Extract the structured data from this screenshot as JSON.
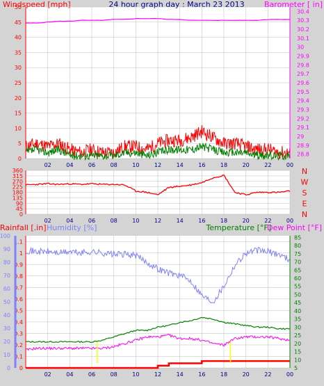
{
  "colors": {
    "background": "#d4d4d4",
    "plot_bg": "#ffffff",
    "grid": "#bbbbbb",
    "wind": "#ff0000",
    "gust": "#008000",
    "barometer": "#ff00ff",
    "winddir": "#ff0000",
    "rain": "#ff0000",
    "humidity": "#8080ff",
    "temperature": "#008000",
    "dewpoint": "#ff00ff",
    "title": "#000080",
    "sunmark": "#ffff00"
  },
  "chart_data": [
    {
      "type": "line",
      "title": "24 hour graph day : March 23 2013",
      "left_label": "Windspeed [mph]",
      "right_label": "Barometer [ in]",
      "x_ticks": [
        "02",
        "04",
        "06",
        "08",
        "10",
        "12",
        "14",
        "16",
        "18",
        "20",
        "22",
        "00"
      ],
      "x_hours": [
        0,
        1,
        2,
        3,
        4,
        5,
        6,
        7,
        8,
        9,
        10,
        11,
        12,
        13,
        14,
        15,
        16,
        17,
        18,
        19,
        20,
        21,
        22,
        23,
        24
      ],
      "left_ticks": [
        "50",
        "45",
        "40",
        "35",
        "30",
        "25",
        "20",
        "15",
        "10",
        "5",
        "0"
      ],
      "left_range": [
        0,
        50
      ],
      "right_ticks": [
        "30.4",
        "30.3",
        "30.2",
        "30.1",
        "30",
        "29.9",
        "29.8",
        "29.7",
        "29.6",
        "29.5",
        "29.4",
        "29.3",
        "29.2",
        "29.1",
        "29",
        "28.9",
        "28.8"
      ],
      "right_range": [
        28.75,
        30.45
      ],
      "series": [
        {
          "key": "wind_speed",
          "axis": "left",
          "values": [
            4,
            5,
            4,
            5,
            3,
            2,
            3,
            2,
            2,
            4,
            4,
            3,
            5,
            6,
            6,
            7,
            9,
            7,
            5,
            5,
            4,
            3,
            3,
            2,
            2
          ]
        },
        {
          "key": "wind_gust",
          "axis": "left",
          "values": [
            2,
            3,
            2,
            3,
            1,
            1,
            1,
            1,
            1,
            2,
            2,
            1,
            2,
            3,
            3,
            3,
            4,
            3,
            2,
            2,
            2,
            1,
            1,
            1,
            1
          ]
        },
        {
          "key": "barometer",
          "axis": "right",
          "values": [
            30.27,
            30.27,
            30.28,
            30.29,
            30.29,
            30.3,
            30.3,
            30.3,
            30.31,
            30.31,
            30.32,
            30.32,
            30.32,
            30.31,
            30.31,
            30.3,
            30.3,
            30.3,
            30.3,
            30.3,
            30.3,
            30.3,
            30.31,
            30.31,
            30.31
          ]
        }
      ]
    },
    {
      "type": "line",
      "x_ticks": [
        "02",
        "04",
        "06",
        "08",
        "10",
        "12",
        "14",
        "16",
        "18",
        "20",
        "22",
        "00"
      ],
      "left_ticks": [
        "360",
        "315",
        "270",
        "225",
        "180",
        "135",
        "90",
        "45",
        "0"
      ],
      "left_range": [
        0,
        360
      ],
      "compass": [
        "N",
        "W",
        "S",
        "E",
        "N"
      ],
      "series": [
        {
          "key": "wind_direction",
          "values": [
            240,
            245,
            250,
            245,
            250,
            245,
            250,
            245,
            245,
            240,
            190,
            180,
            160,
            220,
            230,
            240,
            260,
            300,
            320,
            180,
            160,
            180,
            180,
            180,
            190
          ]
        }
      ]
    },
    {
      "type": "line",
      "rain_label": "Rainfall [.in]",
      "humidity_label": "Humidity [%]",
      "temperature_label": "Temperature [°F]",
      "dewpoint_label": "Dew Point [°F]",
      "x_ticks": [
        "02",
        "04",
        "06",
        "08",
        "10",
        "12",
        "14",
        "16",
        "18",
        "20",
        "22",
        "00"
      ],
      "humidity_ticks": [
        "100",
        "90",
        "80",
        "70",
        "60",
        "50",
        "40",
        "30",
        "20",
        "10",
        "0"
      ],
      "humidity_range": [
        0,
        100
      ],
      "rain_ticks": [
        "1.1",
        "1",
        "0.9",
        "0.8",
        "0.7",
        "0.6",
        "0.5",
        "0.4",
        "0.3",
        "0.2",
        "0.1",
        "0"
      ],
      "rain_range": [
        0,
        1.15
      ],
      "temp_ticks": [
        "85",
        "80",
        "75",
        "70",
        "65",
        "60",
        "55",
        "50",
        "45",
        "40",
        "35",
        "30",
        "25",
        "20",
        "15",
        "10",
        "5"
      ],
      "temp_range": [
        5,
        86
      ],
      "series": [
        {
          "key": "humidity",
          "axis": "humidity",
          "values": [
            89,
            88,
            88,
            87,
            88,
            87,
            88,
            87,
            86,
            86,
            85,
            80,
            75,
            72,
            70,
            66,
            55,
            50,
            62,
            78,
            87,
            89,
            88,
            86,
            82
          ]
        },
        {
          "key": "temperature",
          "axis": "temp",
          "values": [
            21,
            21,
            21,
            21,
            21,
            21,
            21,
            22,
            24,
            26,
            28,
            28,
            30,
            31,
            33,
            34,
            36,
            35,
            33,
            32,
            31,
            30,
            30,
            29,
            29
          ]
        },
        {
          "key": "dewpoint",
          "axis": "temp",
          "values": [
            16,
            17,
            17,
            17,
            17,
            17,
            17,
            17,
            18,
            20,
            22,
            24,
            24,
            25,
            23,
            23,
            22,
            20,
            19,
            23,
            24,
            24,
            24,
            23,
            22
          ]
        },
        {
          "key": "rainfall",
          "axis": "rain",
          "values": [
            0,
            0,
            0,
            0,
            0,
            0,
            0,
            0,
            0,
            0,
            0,
            0,
            0.02,
            0.04,
            0.04,
            0.04,
            0.06,
            0.06,
            0.06,
            0.06,
            0.06,
            0.06,
            0.06,
            0.06,
            0.06
          ]
        }
      ],
      "sun_marks": [
        6.5,
        18.6
      ]
    }
  ]
}
